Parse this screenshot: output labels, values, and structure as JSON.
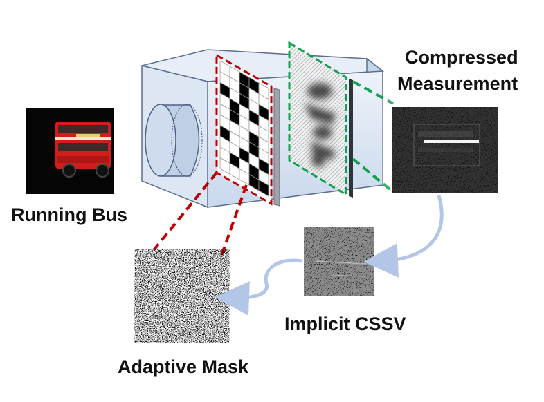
{
  "labels": {
    "running_bus": "Running Bus",
    "compressed_line1": "Compressed",
    "compressed_line2": "Measurement",
    "implicit_cssv": "Implicit CSSV",
    "adaptive_mask": "Adaptive Mask"
  },
  "colors": {
    "mask_outline": "#c00000",
    "sensor_outline": "#10a050",
    "camera_body": "#d6e3f3",
    "arrow": "#b4c6e7",
    "bus_red": "#d21d1d"
  },
  "coded_mask_pattern": [
    [
      0,
      0,
      1,
      1,
      0
    ],
    [
      0,
      0,
      1,
      0,
      0
    ],
    [
      1,
      0,
      1,
      0,
      1
    ],
    [
      0,
      1,
      0,
      1,
      0
    ],
    [
      0,
      1,
      0,
      0,
      0
    ],
    [
      0,
      0,
      0,
      1,
      0
    ],
    [
      1,
      0,
      0,
      1,
      0
    ],
    [
      0,
      0,
      1,
      0,
      1
    ],
    [
      0,
      1,
      0,
      1,
      0
    ],
    [
      0,
      0,
      0,
      1,
      1
    ]
  ]
}
